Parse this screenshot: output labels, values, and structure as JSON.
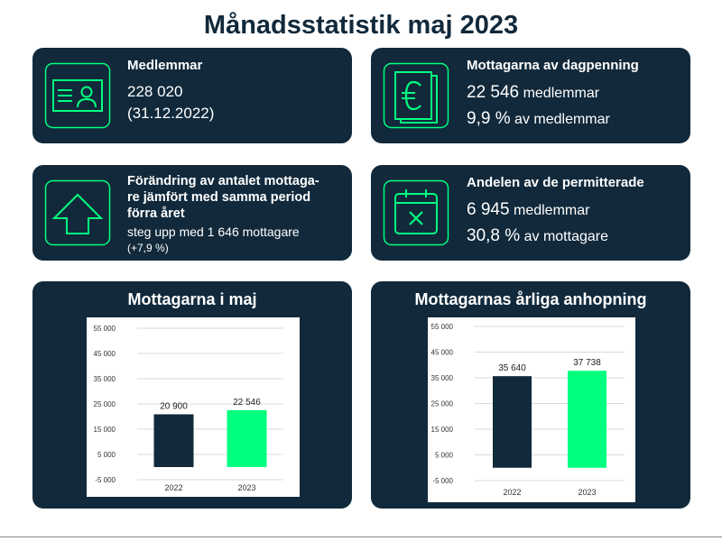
{
  "title": "Månadsstatistik maj 2023",
  "colors": {
    "navy": "#11293b",
    "green": "#00ff7f",
    "white": "#ffffff"
  },
  "cards": {
    "members": {
      "icon": "id-card-icon",
      "title": "Medlemmar",
      "line1": "228 020",
      "line2": "(31.12.2022)"
    },
    "recipients": {
      "icon": "euro-icon",
      "title": "Mottagarna av dagpenning",
      "value1": "22 546",
      "unit1": "medlemmar",
      "value2": "9,9 %",
      "unit2": "av medlemmar"
    },
    "change": {
      "icon": "arrow-up-icon",
      "title_lines": [
        "Förändring av antalet mottaga-",
        "re jämfört med samma period",
        "förra året"
      ],
      "line1": "steg upp med 1 646 mottagare",
      "line2": "(+7,9 %)"
    },
    "laid_off": {
      "icon": "calendar-x-icon",
      "title": "Andelen av de permitterade",
      "value1": "6 945",
      "unit1": "medlemmar",
      "value2": "30,8 %",
      "unit2": "av mottagare"
    }
  },
  "chart_data": [
    {
      "type": "bar",
      "title": "Mottagarna i maj",
      "categories": [
        "2022",
        "2023"
      ],
      "values": [
        20900,
        22546
      ],
      "value_labels": [
        "20 900",
        "22 546"
      ],
      "bar_colors": [
        "#11293b",
        "#00ff7f"
      ],
      "ylim": [
        -5000,
        55000
      ],
      "yticks": [
        -5000,
        5000,
        15000,
        25000,
        35000,
        45000,
        55000
      ],
      "ytick_labels": [
        "-5 000",
        "5 000",
        "15 000",
        "25 000",
        "35 000",
        "45 000",
        "55 000"
      ],
      "grid": true
    },
    {
      "type": "bar",
      "title": "Mottagarnas årliga anhopning",
      "categories": [
        "2022",
        "2023"
      ],
      "values": [
        35640,
        37738
      ],
      "value_labels": [
        "35 640",
        "37 738"
      ],
      "bar_colors": [
        "#11293b",
        "#00ff7f"
      ],
      "ylim": [
        -5000,
        55000
      ],
      "yticks": [
        -5000,
        5000,
        15000,
        25000,
        35000,
        45000,
        55000
      ],
      "ytick_labels": [
        "-5 000",
        "5 000",
        "15 000",
        "25 000",
        "35 000",
        "45 000",
        "55 000"
      ],
      "grid": true
    }
  ]
}
